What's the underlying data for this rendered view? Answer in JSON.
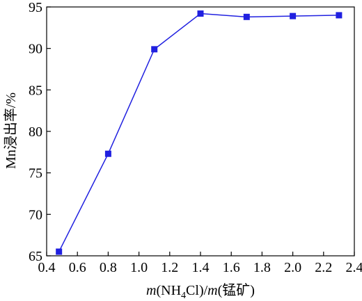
{
  "chart_data": {
    "type": "line",
    "title": "",
    "xlabel": "m(NH4Cl)/m(锰矿)",
    "xlabel_parts": {
      "m1": "m",
      "open": "(NH",
      "sub": "4",
      "close": "Cl)/",
      "m2": "m",
      "tail": "(锰矿)"
    },
    "ylabel": "Mn浸出率/%",
    "xlim": [
      0.4,
      2.4
    ],
    "ylim": [
      65,
      95
    ],
    "xticks": [
      0.4,
      0.6,
      0.8,
      1.0,
      1.2,
      1.4,
      1.6,
      1.8,
      2.0,
      2.2,
      2.4
    ],
    "xtick_labels": [
      "0.4",
      "0.6",
      "0.8",
      "1.0",
      "1.2",
      "1.4",
      "1.6",
      "1.8",
      "2.0",
      "2.2",
      "2.4"
    ],
    "yticks": [
      65,
      70,
      75,
      80,
      85,
      90,
      95
    ],
    "ytick_labels": [
      "65",
      "70",
      "75",
      "80",
      "85",
      "90",
      "95"
    ],
    "grid": false,
    "legend": "none",
    "series": [
      {
        "x": [
          0.48,
          0.8,
          1.1,
          1.4,
          1.7,
          2.0,
          2.3
        ],
        "y": [
          65.5,
          77.3,
          89.9,
          94.2,
          93.8,
          93.9,
          94.0
        ],
        "color": "#2020e0",
        "marker": "square"
      }
    ]
  }
}
